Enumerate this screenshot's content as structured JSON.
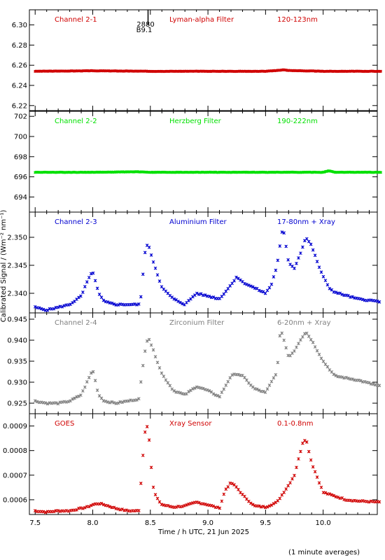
{
  "figure": {
    "ylabel": "Calibrated Signal / (Wm⁻² nm⁻¹)",
    "xlabel": "Time / h UTC, 21 Jun 2025",
    "footnote": "(1 minute averages)",
    "marker_label_top": "2880",
    "marker_label_bottom": "B9.1"
  },
  "chart_data": [
    {
      "type": "scatter",
      "channel": "Channel 2-1",
      "filter": "Lyman-alpha Filter",
      "band": "120-123nm",
      "color": "#d00000",
      "ylim": [
        6.215,
        6.315
      ],
      "yticks": [
        "6.22",
        "6.24",
        "6.26",
        "6.28",
        "6.30"
      ],
      "yticks_values": [
        6.22,
        6.24,
        6.26,
        6.28,
        6.3
      ],
      "x": [
        7.5,
        8.0,
        8.5,
        9.0,
        9.5,
        9.6,
        9.65,
        9.7,
        10.0,
        10.5
      ],
      "y": [
        6.254,
        6.2545,
        6.254,
        6.254,
        6.254,
        6.2548,
        6.2555,
        6.2548,
        6.254,
        6.254
      ]
    },
    {
      "type": "scatter",
      "channel": "Channel 2-2",
      "filter": "Herzberg Filter",
      "band": "190-222nm",
      "color": "#00e000",
      "ylim": [
        692.5,
        702.5
      ],
      "yticks": [
        "694",
        "696",
        "698",
        "700",
        "702"
      ],
      "yticks_values": [
        694,
        696,
        698,
        700,
        702
      ],
      "x": [
        7.5,
        8.0,
        8.4,
        8.5,
        9.0,
        9.5,
        10.0,
        10.05,
        10.1,
        10.5
      ],
      "y": [
        696.45,
        696.45,
        696.5,
        696.45,
        696.45,
        696.45,
        696.45,
        696.6,
        696.45,
        696.45
      ]
    },
    {
      "type": "scatter",
      "channel": "Channel 2-3",
      "filter": "Aluminium Filter",
      "band": "17-80nm + Xray",
      "color": "#0000d0",
      "ylim": [
        2.3365,
        2.3545
      ],
      "yticks": [
        "2.340",
        "2.345",
        "2.350"
      ],
      "yticks_values": [
        2.34,
        2.345,
        2.35
      ],
      "x": [
        7.5,
        7.6,
        7.7,
        7.8,
        7.9,
        7.95,
        8.0,
        8.05,
        8.1,
        8.2,
        8.3,
        8.4,
        8.42,
        8.45,
        8.48,
        8.52,
        8.6,
        8.7,
        8.8,
        8.9,
        9.0,
        9.1,
        9.2,
        9.25,
        9.3,
        9.4,
        9.5,
        9.55,
        9.6,
        9.65,
        9.7,
        9.75,
        9.8,
        9.85,
        9.9,
        9.95,
        10.0,
        10.05,
        10.1,
        10.3,
        10.5
      ],
      "y": [
        2.3375,
        2.337,
        2.3375,
        2.338,
        2.3395,
        2.342,
        2.344,
        2.34,
        2.3385,
        2.338,
        2.338,
        2.338,
        2.3395,
        2.347,
        2.349,
        2.346,
        2.341,
        2.339,
        2.338,
        2.34,
        2.3395,
        2.339,
        2.3415,
        2.343,
        2.342,
        2.341,
        2.34,
        2.3415,
        2.345,
        2.352,
        2.3455,
        2.3445,
        2.347,
        2.35,
        2.3485,
        2.3455,
        2.343,
        2.341,
        2.3402,
        2.339,
        2.3385
      ]
    },
    {
      "type": "scatter",
      "channel": "Channel 2-4",
      "filter": "Zirconium Filter",
      "band": "6-20nm + Xray",
      "color": "#808080",
      "ylim": [
        0.9225,
        0.9465
      ],
      "yticks": [
        "0.925",
        "0.930",
        "0.935",
        "0.940",
        "0.945"
      ],
      "yticks_values": [
        0.925,
        0.93,
        0.935,
        0.94,
        0.945
      ],
      "x": [
        7.5,
        7.6,
        7.7,
        7.8,
        7.9,
        7.95,
        8.0,
        8.05,
        8.1,
        8.2,
        8.3,
        8.4,
        8.45,
        8.48,
        8.52,
        8.6,
        8.7,
        8.8,
        8.9,
        9.0,
        9.1,
        9.2,
        9.25,
        9.3,
        9.4,
        9.5,
        9.55,
        9.6,
        9.63,
        9.7,
        9.75,
        9.8,
        9.85,
        9.9,
        10.0,
        10.1,
        10.3,
        10.5
      ],
      "y": [
        0.9255,
        0.925,
        0.925,
        0.9255,
        0.927,
        0.93,
        0.933,
        0.927,
        0.9255,
        0.925,
        0.9255,
        0.926,
        0.937,
        0.941,
        0.938,
        0.932,
        0.928,
        0.927,
        0.929,
        0.928,
        0.9265,
        0.9315,
        0.932,
        0.9315,
        0.9285,
        0.9275,
        0.93,
        0.9325,
        0.943,
        0.936,
        0.9375,
        0.94,
        0.942,
        0.94,
        0.935,
        0.9315,
        0.9305,
        0.929
      ]
    },
    {
      "type": "scatter",
      "channel": "GOES",
      "filter": "Xray Sensor",
      "band": "0.1-0.8nm",
      "color": "#d00000",
      "ylim": [
        0.00054,
        0.00095
      ],
      "yticks": [
        "0.0006",
        "0.0007",
        "0.0008",
        "0.0009"
      ],
      "yticks_values": [
        0.0006,
        0.0007,
        0.0008,
        0.0009
      ],
      "x": [
        7.5,
        7.6,
        7.7,
        7.8,
        7.9,
        7.95,
        8.0,
        8.05,
        8.1,
        8.2,
        8.3,
        8.4,
        8.45,
        8.48,
        8.5,
        8.52,
        8.55,
        8.6,
        8.7,
        8.8,
        8.9,
        8.95,
        9.0,
        9.1,
        9.15,
        9.2,
        9.25,
        9.3,
        9.4,
        9.5,
        9.6,
        9.7,
        9.75,
        9.8,
        9.82,
        9.85,
        9.9,
        10.0,
        10.1,
        10.2,
        10.3,
        10.5
      ],
      "y": [
        0.000555,
        0.00055,
        0.000555,
        0.000555,
        0.000565,
        0.00057,
        0.00058,
        0.000585,
        0.00058,
        0.000565,
        0.000555,
        0.000555,
        0.00087,
        0.00091,
        0.00078,
        0.00066,
        0.00061,
        0.00058,
        0.00057,
        0.000575,
        0.00059,
        0.000585,
        0.00058,
        0.000565,
        0.00064,
        0.00067,
        0.00065,
        0.00062,
        0.000575,
        0.00057,
        0.00059,
        0.00066,
        0.0007,
        0.00079,
        0.00083,
        0.00085,
        0.00075,
        0.00063,
        0.000615,
        0.0006,
        0.000595,
        0.00059
      ]
    }
  ],
  "x_axis": {
    "xlim": [
      7.45,
      10.47
    ],
    "ticks": [
      7.5,
      8.0,
      8.5,
      9.0,
      9.5,
      10.0
    ],
    "tick_labels": [
      "7.5",
      "8.0",
      "8.5",
      "9.0",
      "9.5",
      "10.0"
    ],
    "event_time": 8.48
  }
}
